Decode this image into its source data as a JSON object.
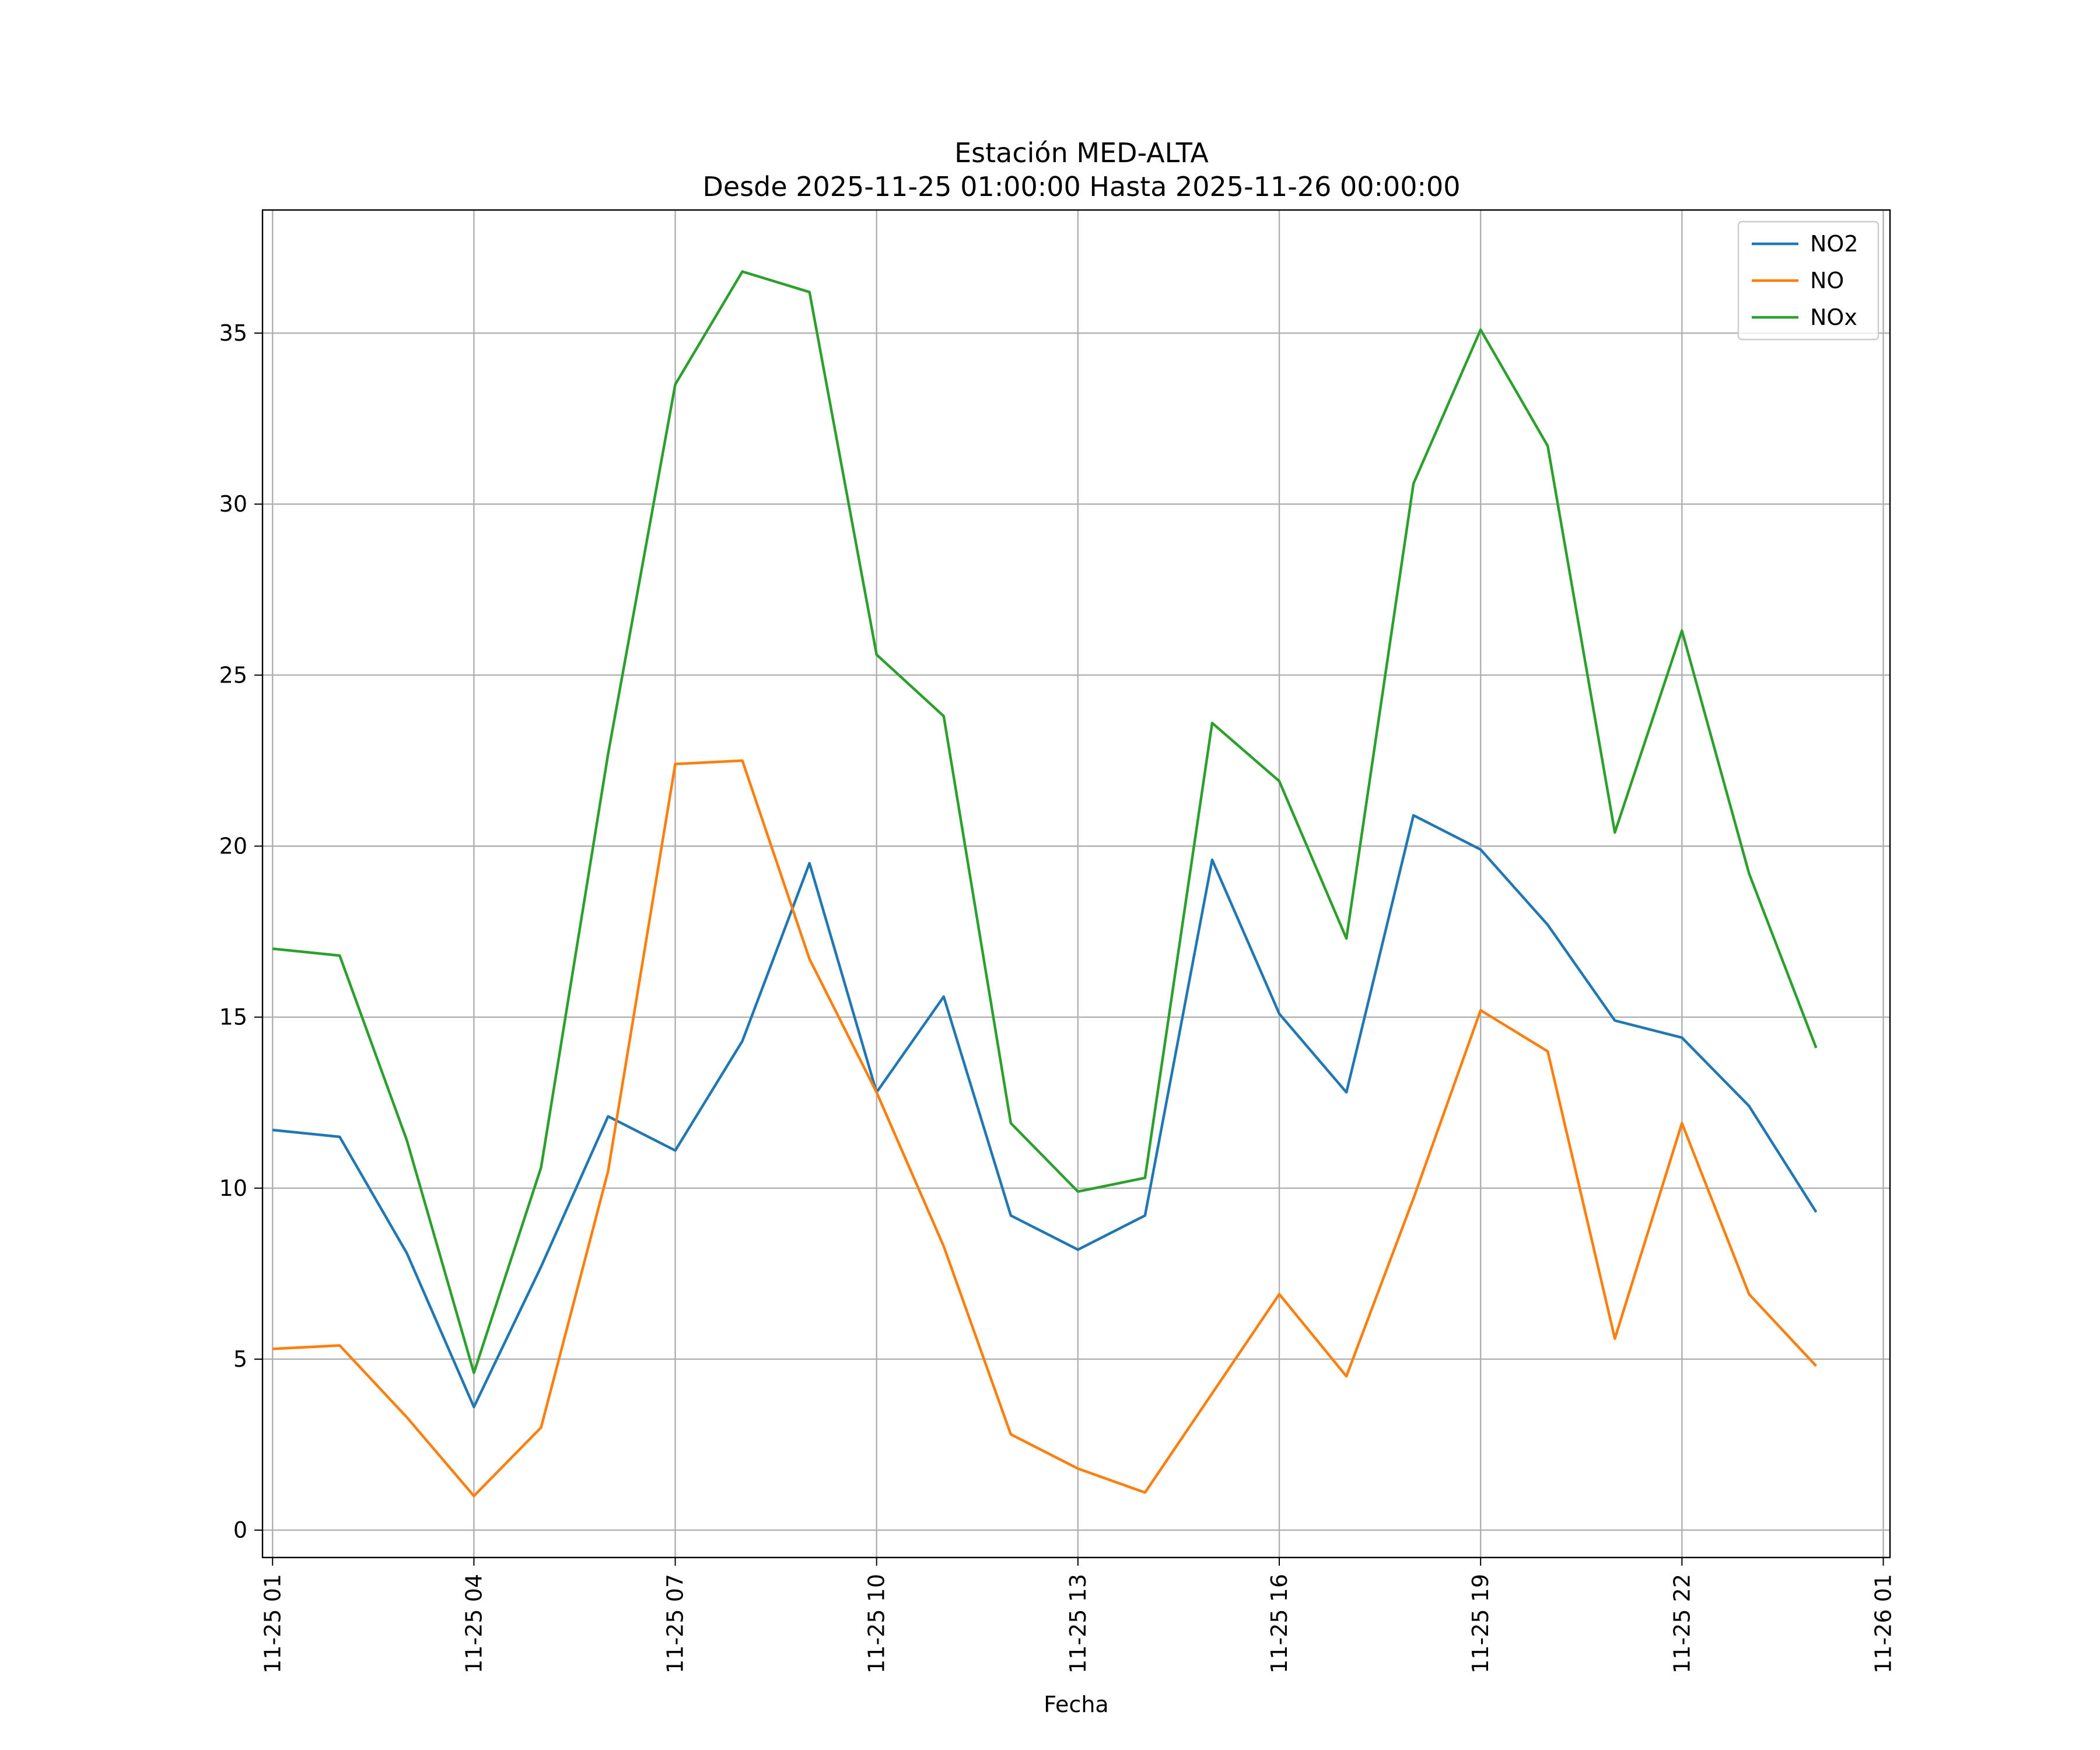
{
  "chart_data": {
    "type": "line",
    "title": "Estación MED-ALTA",
    "subtitle": "Desde 2025-11-25 01:00:00 Hasta 2025-11-26 00:00:00",
    "xlabel": "Fecha",
    "ylabel": "",
    "x": [
      "11-25 01",
      "11-25 02",
      "11-25 03",
      "11-25 04",
      "11-25 05",
      "11-25 06",
      "11-25 07",
      "11-25 08",
      "11-25 09",
      "11-25 10",
      "11-25 11",
      "11-25 12",
      "11-25 13",
      "11-25 14",
      "11-25 15",
      "11-25 16",
      "11-25 17",
      "11-25 18",
      "11-25 19",
      "11-25 20",
      "11-25 21",
      "11-25 22",
      "11-25 23",
      "11-26 00"
    ],
    "x_ticks": [
      "11-25 01",
      "11-25 04",
      "11-25 07",
      "11-25 10",
      "11-25 13",
      "11-25 16",
      "11-25 19",
      "11-25 22",
      "11-26 01"
    ],
    "y_ticks": [
      0,
      5,
      10,
      15,
      20,
      25,
      30,
      35
    ],
    "ylim": [
      -0.8,
      38.6
    ],
    "xlim": [
      "11-25 00:51",
      "11-26 01:06"
    ],
    "grid": true,
    "legend_position": "top-right",
    "series": [
      {
        "name": "NO2",
        "color": "#1f77b4",
        "values": [
          11.7,
          11.5,
          8.1,
          3.6,
          7.7,
          12.1,
          11.1,
          14.3,
          19.5,
          12.8,
          15.6,
          9.2,
          8.2,
          9.2,
          19.6,
          15.1,
          12.8,
          20.9,
          19.9,
          17.7,
          14.9,
          14.4,
          12.4,
          9.3
        ]
      },
      {
        "name": "NO",
        "color": "#ff7f0e",
        "values": [
          5.3,
          5.4,
          3.3,
          1.0,
          3.0,
          10.5,
          22.4,
          22.5,
          16.7,
          12.8,
          8.3,
          2.8,
          1.8,
          1.1,
          4.0,
          6.9,
          4.5,
          9.7,
          15.2,
          14.0,
          5.6,
          11.9,
          6.9,
          4.8
        ]
      },
      {
        "name": "NOx",
        "color": "#2ca02c",
        "values": [
          17.0,
          16.8,
          11.4,
          4.6,
          10.6,
          22.7,
          33.5,
          36.8,
          36.2,
          25.6,
          23.8,
          11.9,
          9.9,
          10.3,
          23.6,
          21.9,
          17.3,
          30.6,
          35.1,
          31.7,
          20.4,
          26.3,
          19.2,
          14.1
        ]
      }
    ]
  }
}
